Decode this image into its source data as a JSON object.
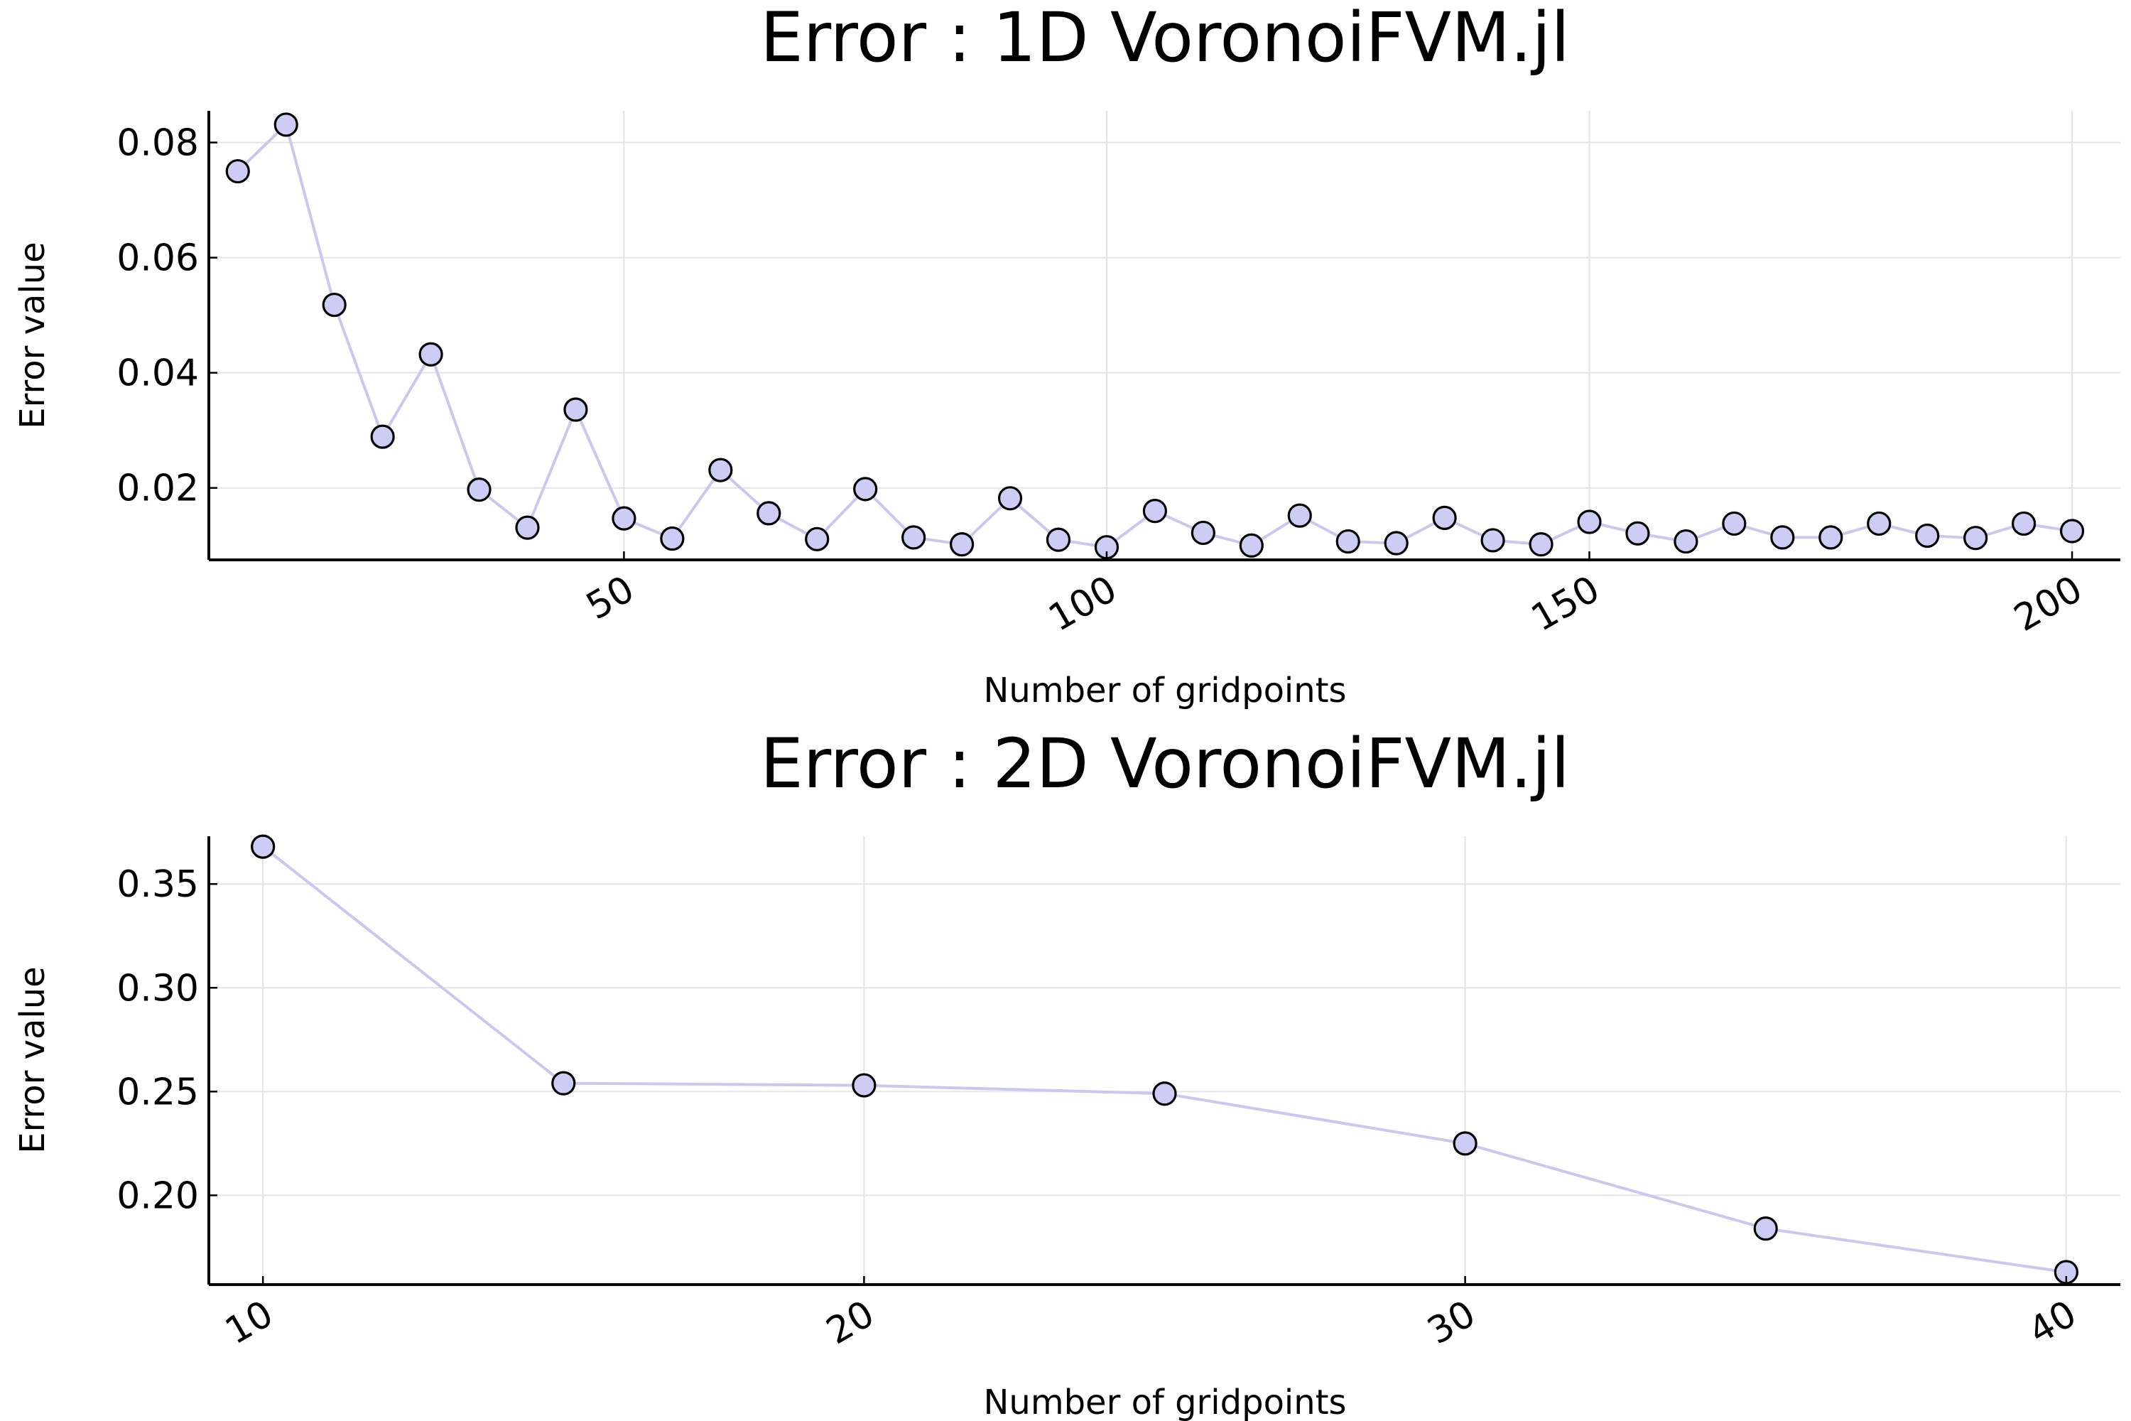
{
  "colors": {
    "series": "#c8c8f0",
    "marker_fill": "#ccccf5",
    "marker_stroke": "#000000",
    "grid": "#e4e4e4"
  },
  "chart_data": [
    {
      "type": "line",
      "title": "Error : 1D VoronoiFVM.jl",
      "xlabel": "Number of gridpoints",
      "ylabel": "Error value",
      "xlim": [
        7,
        205
      ],
      "ylim": [
        0.0075,
        0.0855
      ],
      "xticks": [
        50,
        100,
        150,
        200
      ],
      "xtick_labels": [
        "50",
        "100",
        "150",
        "200"
      ],
      "yticks": [
        0.02,
        0.04,
        0.06,
        0.08
      ],
      "ytick_labels": [
        "0.02",
        "0.04",
        "0.06",
        "0.08"
      ],
      "grid": true,
      "legend": "none",
      "markers": true,
      "series": [
        {
          "x": [
            10,
            15,
            20,
            25,
            30,
            35,
            40,
            45,
            50,
            55,
            60,
            65,
            70,
            75,
            80,
            85,
            90,
            95,
            100,
            105,
            110,
            115,
            120,
            125,
            130,
            135,
            140,
            145,
            150,
            155,
            160,
            165,
            170,
            175,
            180,
            185,
            190,
            195,
            200
          ],
          "values": [
            0.075,
            0.0831,
            0.0518,
            0.0289,
            0.0432,
            0.0197,
            0.0131,
            0.0336,
            0.0147,
            0.0112,
            0.0231,
            0.0156,
            0.0111,
            0.0198,
            0.0114,
            0.0102,
            0.0182,
            0.011,
            0.0097,
            0.016,
            0.0122,
            0.01,
            0.0152,
            0.0107,
            0.0104,
            0.0148,
            0.0109,
            0.0102,
            0.0141,
            0.0121,
            0.0107,
            0.0138,
            0.0114,
            0.0114,
            0.0138,
            0.0117,
            0.0113,
            0.0138,
            0.0125
          ]
        }
      ]
    },
    {
      "type": "line",
      "title": "Error : 2D VoronoiFVM.jl",
      "xlabel": "Number of gridpoints",
      "ylabel": "Error value",
      "xlim": [
        9.1,
        40.9
      ],
      "ylim": [
        0.157,
        0.373
      ],
      "xticks": [
        10,
        20,
        30,
        40
      ],
      "xtick_labels": [
        "10",
        "20",
        "30",
        "40"
      ],
      "yticks": [
        0.2,
        0.25,
        0.3,
        0.35
      ],
      "ytick_labels": [
        "0.20",
        "0.25",
        "0.30",
        "0.35"
      ],
      "grid": true,
      "legend": "none",
      "markers": true,
      "series": [
        {
          "x": [
            10,
            15,
            20,
            25,
            30,
            35,
            40
          ],
          "values": [
            0.368,
            0.254,
            0.253,
            0.249,
            0.225,
            0.184,
            0.163
          ]
        }
      ]
    }
  ]
}
